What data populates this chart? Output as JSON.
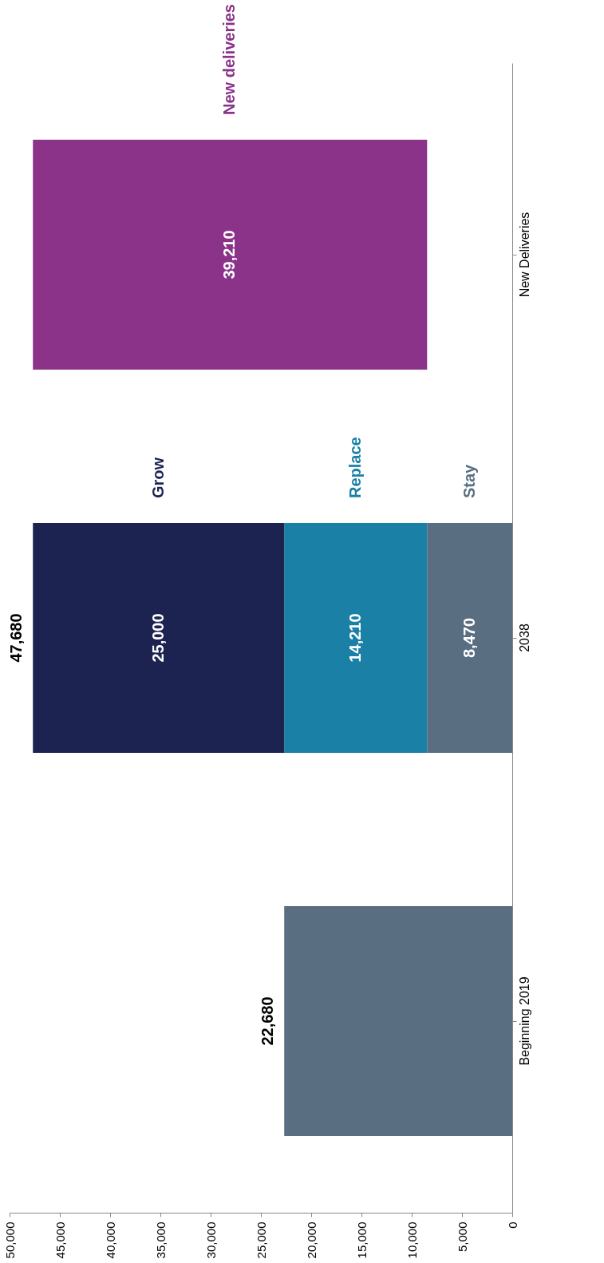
{
  "chart_data": {
    "type": "bar",
    "orientation": "horizontal",
    "stacked": true,
    "categories": [
      "New Deliveries",
      "2038",
      "Beginning 2019"
    ],
    "series": [
      {
        "name": "Stay",
        "color": "#5a6e82",
        "values": [
          null,
          8470,
          22680
        ],
        "value_labels": [
          null,
          "8,470",
          null
        ]
      },
      {
        "name": "Replace",
        "color": "#1a80a6",
        "values": [
          null,
          14210,
          null
        ],
        "value_labels": [
          null,
          "14,210",
          null
        ]
      },
      {
        "name": "Grow",
        "color": "#1c2350",
        "values": [
          null,
          25000,
          null
        ],
        "value_labels": [
          null,
          "25,000",
          null
        ]
      },
      {
        "name": "New deliveries",
        "color": "#8b3389",
        "values": [
          39210,
          null,
          null
        ],
        "base": [
          8470,
          null,
          null
        ],
        "value_labels": [
          "39,210",
          null,
          null
        ]
      }
    ],
    "totals": [
      null,
      "47,680",
      "22,680"
    ],
    "xlim": [
      50000,
      0
    ],
    "xticks": [
      0,
      {
        "value": 5000,
        "label": "5,000"
      },
      {
        "value": 10000,
        "label": "10,000"
      },
      {
        "value": 15000,
        "label": "15,000"
      },
      {
        "value": 20000,
        "label": "20,000"
      },
      {
        "value": 25000,
        "label": "25,000"
      },
      {
        "value": 30000,
        "label": "30,000"
      },
      {
        "value": 35000,
        "label": "35,000"
      },
      {
        "value": 40000,
        "label": "40,000"
      },
      {
        "value": 45000,
        "label": "45,000"
      },
      {
        "value": 50000,
        "label": "50,000"
      }
    ]
  }
}
